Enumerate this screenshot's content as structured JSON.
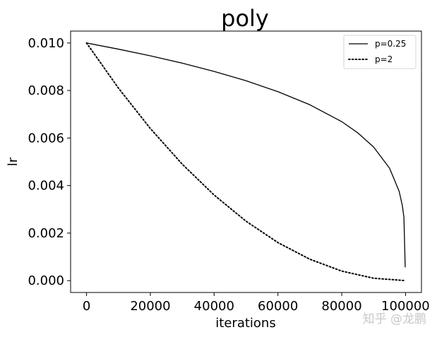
{
  "chart_data": {
    "type": "line",
    "title": "poly",
    "xlabel": "iterations",
    "ylabel": "lr",
    "xlim": [
      -5000,
      105000
    ],
    "ylim": [
      -0.0005,
      0.0105
    ],
    "x_ticks": [
      0,
      20000,
      40000,
      60000,
      80000,
      100000
    ],
    "x_tick_labels": [
      "0",
      "20000",
      "40000",
      "60000",
      "80000",
      "100000"
    ],
    "y_ticks": [
      0.0,
      0.002,
      0.004,
      0.006,
      0.008,
      0.01
    ],
    "y_tick_labels": [
      "0.000",
      "0.002",
      "0.004",
      "0.006",
      "0.008",
      "0.010"
    ],
    "grid": false,
    "legend_position": "top-right",
    "series": [
      {
        "name": "p=0.25",
        "style": "solid",
        "color": "#000000",
        "x": [
          0,
          10000,
          20000,
          30000,
          40000,
          50000,
          60000,
          70000,
          80000,
          85000,
          90000,
          95000,
          98000,
          99000,
          99500,
          99900
        ],
        "y": [
          0.01,
          0.00974,
          0.00946,
          0.00915,
          0.0088,
          0.00841,
          0.00795,
          0.0074,
          0.00669,
          0.00622,
          0.00562,
          0.00473,
          0.00376,
          0.00316,
          0.00266,
          0.00056
        ]
      },
      {
        "name": "p=2",
        "style": "dotted",
        "color": "#000000",
        "x": [
          0,
          10000,
          20000,
          30000,
          40000,
          50000,
          60000,
          70000,
          80000,
          90000,
          100000
        ],
        "y": [
          0.01,
          0.0081,
          0.0064,
          0.0049,
          0.0036,
          0.0025,
          0.0016,
          0.0009,
          0.0004,
          0.0001,
          0.0
        ]
      }
    ]
  },
  "watermark": "知乎 @龙鹏"
}
